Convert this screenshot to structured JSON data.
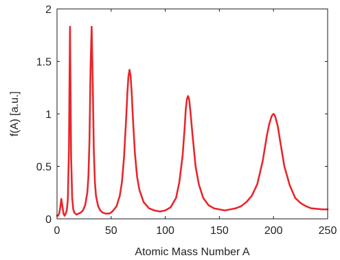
{
  "chart_data": {
    "type": "line",
    "title": "",
    "xlabel": "Atomic Mass Number A",
    "ylabel": "f(A) [a.u.]",
    "xlim": [
      0,
      250
    ],
    "ylim": [
      0,
      2
    ],
    "grid": false,
    "xticks": [
      0,
      50,
      100,
      150,
      200,
      250
    ],
    "xtick_labels": [
      "0",
      "50",
      "100",
      "150",
      "200",
      "250"
    ],
    "yticks": [
      0,
      0.5,
      1,
      1.5,
      2
    ],
    "ytick_labels": [
      "0",
      "0.5",
      "1",
      "1.5",
      "2"
    ],
    "series": [
      {
        "color": "#e8262a",
        "peaks": [
          {
            "A": 4,
            "height": 0.19
          },
          {
            "A": 12,
            "height": 1.83
          },
          {
            "A": 32,
            "height": 1.83
          },
          {
            "A": 67,
            "height": 1.42
          },
          {
            "A": 121,
            "height": 1.17
          },
          {
            "A": 200,
            "height": 1.0
          }
        ],
        "x": [
          0,
          1,
          2,
          3,
          4,
          5,
          6,
          7,
          8,
          9,
          10,
          11,
          12,
          13,
          14,
          15,
          16,
          18,
          20,
          22,
          24,
          26,
          28,
          29,
          30,
          31,
          32,
          33,
          34,
          35,
          36,
          38,
          40,
          42,
          45,
          48,
          50,
          52,
          55,
          58,
          60,
          62,
          64,
          65,
          66,
          67,
          68,
          69,
          70,
          72,
          74,
          76,
          80,
          85,
          90,
          95,
          100,
          105,
          110,
          113,
          116,
          118,
          119,
          120,
          121,
          122,
          123,
          125,
          128,
          131,
          135,
          140,
          145,
          150,
          155,
          160,
          165,
          170,
          175,
          180,
          185,
          190,
          194,
          196,
          198,
          199,
          200,
          201,
          202,
          204,
          206,
          210,
          215,
          220,
          225,
          230,
          235,
          240,
          245,
          250
        ],
        "y": [
          0.03,
          0.03,
          0.05,
          0.11,
          0.19,
          0.12,
          0.05,
          0.03,
          0.05,
          0.08,
          0.18,
          0.65,
          1.83,
          0.6,
          0.2,
          0.09,
          0.06,
          0.04,
          0.05,
          0.06,
          0.08,
          0.13,
          0.25,
          0.4,
          0.75,
          1.45,
          1.83,
          1.3,
          0.65,
          0.35,
          0.22,
          0.12,
          0.08,
          0.06,
          0.05,
          0.05,
          0.06,
          0.08,
          0.12,
          0.22,
          0.35,
          0.6,
          0.98,
          1.2,
          1.36,
          1.42,
          1.36,
          1.2,
          0.98,
          0.62,
          0.4,
          0.28,
          0.16,
          0.1,
          0.08,
          0.07,
          0.08,
          0.11,
          0.2,
          0.35,
          0.6,
          0.88,
          1.05,
          1.14,
          1.17,
          1.14,
          1.05,
          0.82,
          0.5,
          0.33,
          0.2,
          0.13,
          0.1,
          0.09,
          0.08,
          0.09,
          0.1,
          0.12,
          0.16,
          0.22,
          0.33,
          0.55,
          0.8,
          0.9,
          0.97,
          0.99,
          1.0,
          0.99,
          0.96,
          0.88,
          0.75,
          0.5,
          0.32,
          0.2,
          0.15,
          0.12,
          0.1,
          0.095,
          0.09,
          0.09
        ]
      }
    ]
  }
}
